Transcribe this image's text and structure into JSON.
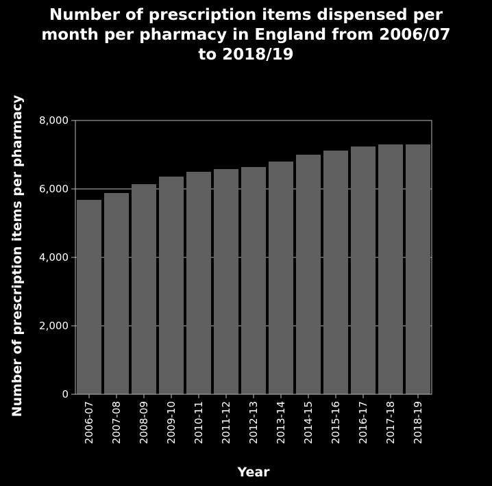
{
  "chart_data": {
    "type": "bar",
    "title": "Number of prescription items dispensed per month per pharmacy in England from 2006/07 to 2018/19",
    "title_lines": [
      "Number of prescription items dispensed per",
      "month per pharmacy in England from 2006/07",
      "to 2018/19"
    ],
    "xlabel": "Year",
    "ylabel": "Number of prescription items per pharmacy",
    "categories": [
      "2006-07",
      "2007-08",
      "2008-09",
      "2009-10",
      "2010-11",
      "2011-12",
      "2012-13",
      "2013-14",
      "2014-15",
      "2015-16",
      "2016-17",
      "2017-18",
      "2018-19"
    ],
    "values": [
      5680,
      5880,
      6140,
      6360,
      6500,
      6580,
      6640,
      6800,
      7000,
      7120,
      7240,
      7300,
      7300
    ],
    "ylim": [
      0,
      8000
    ],
    "yticks": [
      0,
      2000,
      4000,
      6000,
      8000
    ],
    "ytick_labels": [
      "0",
      "2,000",
      "4,000",
      "6,000",
      "8,000"
    ],
    "grid": true,
    "bar_color": "#5f5f5f"
  }
}
